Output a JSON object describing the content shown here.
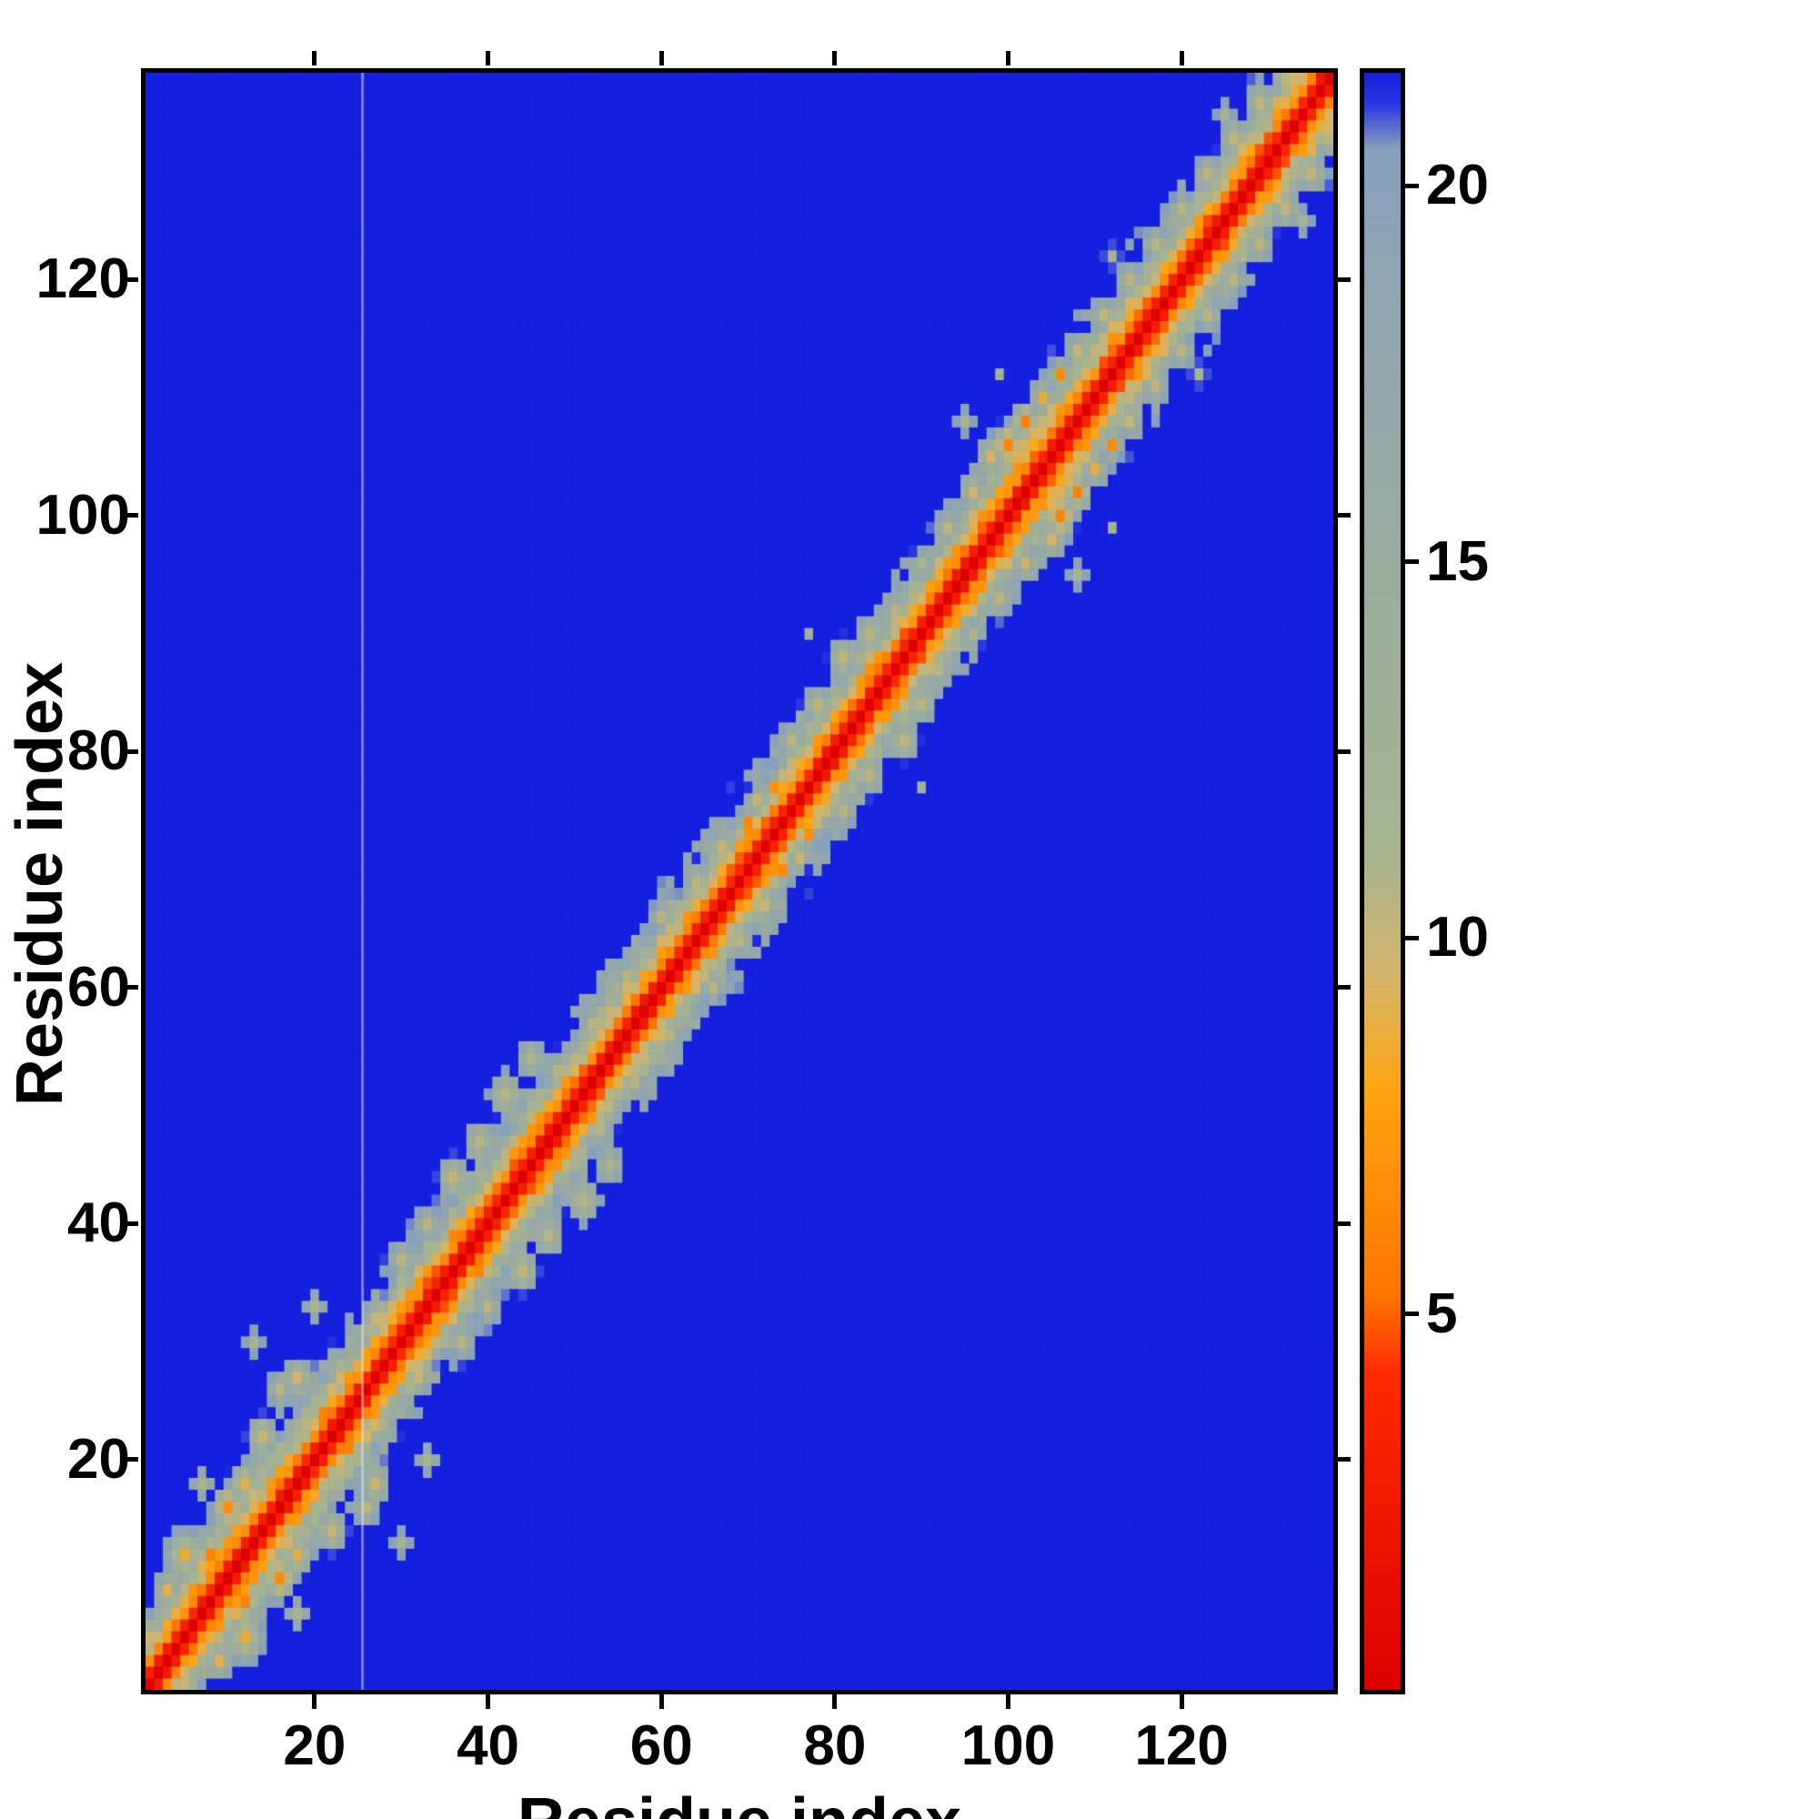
{
  "figure": {
    "background_color": "#ffffff",
    "frame_color": "#000000"
  },
  "chart_data": {
    "type": "heatmap",
    "title": "",
    "xlabel": "Residue index",
    "ylabel": "Residue index",
    "n_residues": 137,
    "x_range": [
      0.5,
      137.5
    ],
    "y_range": [
      0.5,
      137.5
    ],
    "x_ticks": [
      20,
      40,
      60,
      80,
      100,
      120
    ],
    "y_ticks": [
      20,
      40,
      60,
      80,
      100,
      120
    ],
    "grid": false,
    "legend": "colorbar-right",
    "value_range": [
      0,
      21.5
    ],
    "colorbar_ticks": [
      5,
      10,
      15,
      20
    ],
    "background_value_color": "#1520de",
    "vertical_guide_line": {
      "x": 25.5,
      "color": "#e8edf2"
    },
    "colormap": [
      {
        "v": 0.0,
        "c": "#dd0000"
      },
      {
        "v": 4.2,
        "c": "#ff2a00"
      },
      {
        "v": 5.2,
        "c": "#ff7300"
      },
      {
        "v": 8.0,
        "c": "#ffa510"
      },
      {
        "v": 9.5,
        "c": "#d4b46a"
      },
      {
        "v": 11.0,
        "c": "#a9b48e"
      },
      {
        "v": 14.0,
        "c": "#9dad9c"
      },
      {
        "v": 18.0,
        "c": "#92a6ad"
      },
      {
        "v": 20.5,
        "c": "#86a0bd"
      },
      {
        "v": 21.1,
        "c": "#2a35e2"
      },
      {
        "v": 21.5,
        "c": "#1520de"
      }
    ],
    "matrix_model": {
      "description": "Symmetric residue-residue distance map (values in Angstrom, capped at 21.5). value(i,j) = base_scale*|i-j|^base_power modulated by deterministic noise in [noise_min,noise_max]; lowered near listed contact features (blobs with center i,j, radius r, distance value v).",
      "base_scale": 3.1,
      "base_power": 0.95,
      "noise_min": 0.78,
      "noise_max": 1.22,
      "feature_falloff": 28,
      "features": [
        {
          "i": 3,
          "j": 9,
          "r": 1.6,
          "v": 9
        },
        {
          "i": 5,
          "j": 12,
          "r": 2.2,
          "v": 8.5
        },
        {
          "i": 8,
          "j": 12,
          "r": 1.6,
          "v": 6
        },
        {
          "i": 10,
          "j": 16,
          "r": 1.8,
          "v": 6.5
        },
        {
          "i": 12,
          "j": 18,
          "r": 2.0,
          "v": 9
        },
        {
          "i": 7,
          "j": 18,
          "r": 1.4,
          "v": 11
        },
        {
          "i": 14,
          "j": 22,
          "r": 2.0,
          "v": 10
        },
        {
          "i": 16,
          "j": 26,
          "r": 1.6,
          "v": 10.5
        },
        {
          "i": 18,
          "j": 27,
          "r": 1.8,
          "v": 9.5
        },
        {
          "i": 21,
          "j": 24,
          "r": 1.2,
          "v": 6
        },
        {
          "i": 13,
          "j": 30,
          "r": 1.2,
          "v": 11.5
        },
        {
          "i": 20,
          "j": 33,
          "r": 1.3,
          "v": 11
        },
        {
          "i": 27,
          "j": 32,
          "r": 1.6,
          "v": 10
        },
        {
          "i": 30,
          "j": 37,
          "r": 1.6,
          "v": 10.5
        },
        {
          "i": 33,
          "j": 40,
          "r": 1.6,
          "v": 10.5
        },
        {
          "i": 36,
          "j": 39,
          "r": 1.0,
          "v": 6.2
        },
        {
          "i": 36,
          "j": 44,
          "r": 2.0,
          "v": 10
        },
        {
          "i": 39,
          "j": 47,
          "r": 2.0,
          "v": 10.5
        },
        {
          "i": 42,
          "j": 51,
          "r": 2.2,
          "v": 10.5
        },
        {
          "i": 45,
          "j": 54,
          "r": 1.8,
          "v": 11
        },
        {
          "i": 48,
          "j": 53,
          "r": 1.4,
          "v": 10.5
        },
        {
          "i": 52,
          "j": 57,
          "r": 1.4,
          "v": 10.5
        },
        {
          "i": 56,
          "j": 61,
          "r": 1.4,
          "v": 10.5
        },
        {
          "i": 60,
          "j": 66,
          "r": 1.5,
          "v": 10.5
        },
        {
          "i": 64,
          "j": 69,
          "r": 1.4,
          "v": 10.5
        },
        {
          "i": 67,
          "j": 72,
          "r": 1.5,
          "v": 10
        },
        {
          "i": 70,
          "j": 74,
          "r": 1.1,
          "v": 6.3
        },
        {
          "i": 73,
          "j": 77,
          "r": 1.0,
          "v": 6.8
        },
        {
          "i": 71,
          "j": 76,
          "r": 1.4,
          "v": 10
        },
        {
          "i": 75,
          "j": 81,
          "r": 1.6,
          "v": 10.5
        },
        {
          "i": 78,
          "j": 84,
          "r": 1.8,
          "v": 10.3
        },
        {
          "i": 81,
          "j": 88,
          "r": 2.0,
          "v": 10.2
        },
        {
          "i": 84,
          "j": 90,
          "r": 1.8,
          "v": 10.4
        },
        {
          "i": 87,
          "j": 92,
          "r": 1.5,
          "v": 10.6
        },
        {
          "i": 90,
          "j": 96,
          "r": 1.4,
          "v": 11
        },
        {
          "i": 77,
          "j": 90,
          "r": 1.0,
          "v": 12.5
        },
        {
          "i": 93,
          "j": 99,
          "r": 1.6,
          "v": 10.3
        },
        {
          "i": 96,
          "j": 102,
          "r": 1.8,
          "v": 9.8
        },
        {
          "i": 98,
          "j": 105,
          "r": 1.8,
          "v": 9.5
        },
        {
          "i": 100,
          "j": 106,
          "r": 1.8,
          "v": 6.2
        },
        {
          "i": 102,
          "j": 108,
          "r": 1.5,
          "v": 6.0
        },
        {
          "i": 104,
          "j": 110,
          "r": 1.5,
          "v": 8.8
        },
        {
          "i": 106,
          "j": 112,
          "r": 1.2,
          "v": 6.5
        },
        {
          "i": 95,
          "j": 108,
          "r": 1.2,
          "v": 11.5
        },
        {
          "i": 99,
          "j": 112,
          "r": 1.1,
          "v": 12
        },
        {
          "i": 108,
          "j": 114,
          "r": 1.4,
          "v": 10
        },
        {
          "i": 111,
          "j": 117,
          "r": 1.5,
          "v": 10.2
        },
        {
          "i": 114,
          "j": 120,
          "r": 1.6,
          "v": 10.4
        },
        {
          "i": 112,
          "j": 122,
          "r": 1.1,
          "v": 11.5
        },
        {
          "i": 117,
          "j": 123,
          "r": 1.6,
          "v": 10.6
        },
        {
          "i": 120,
          "j": 126,
          "r": 1.5,
          "v": 10.5
        },
        {
          "i": 123,
          "j": 129,
          "r": 1.6,
          "v": 10.3
        },
        {
          "i": 126,
          "j": 132,
          "r": 1.8,
          "v": 10.2
        },
        {
          "i": 129,
          "j": 135,
          "r": 1.8,
          "v": 10.2
        },
        {
          "i": 132,
          "j": 137,
          "r": 1.6,
          "v": 10.4
        },
        {
          "i": 125,
          "j": 134,
          "r": 1.2,
          "v": 11.5
        }
      ]
    }
  }
}
